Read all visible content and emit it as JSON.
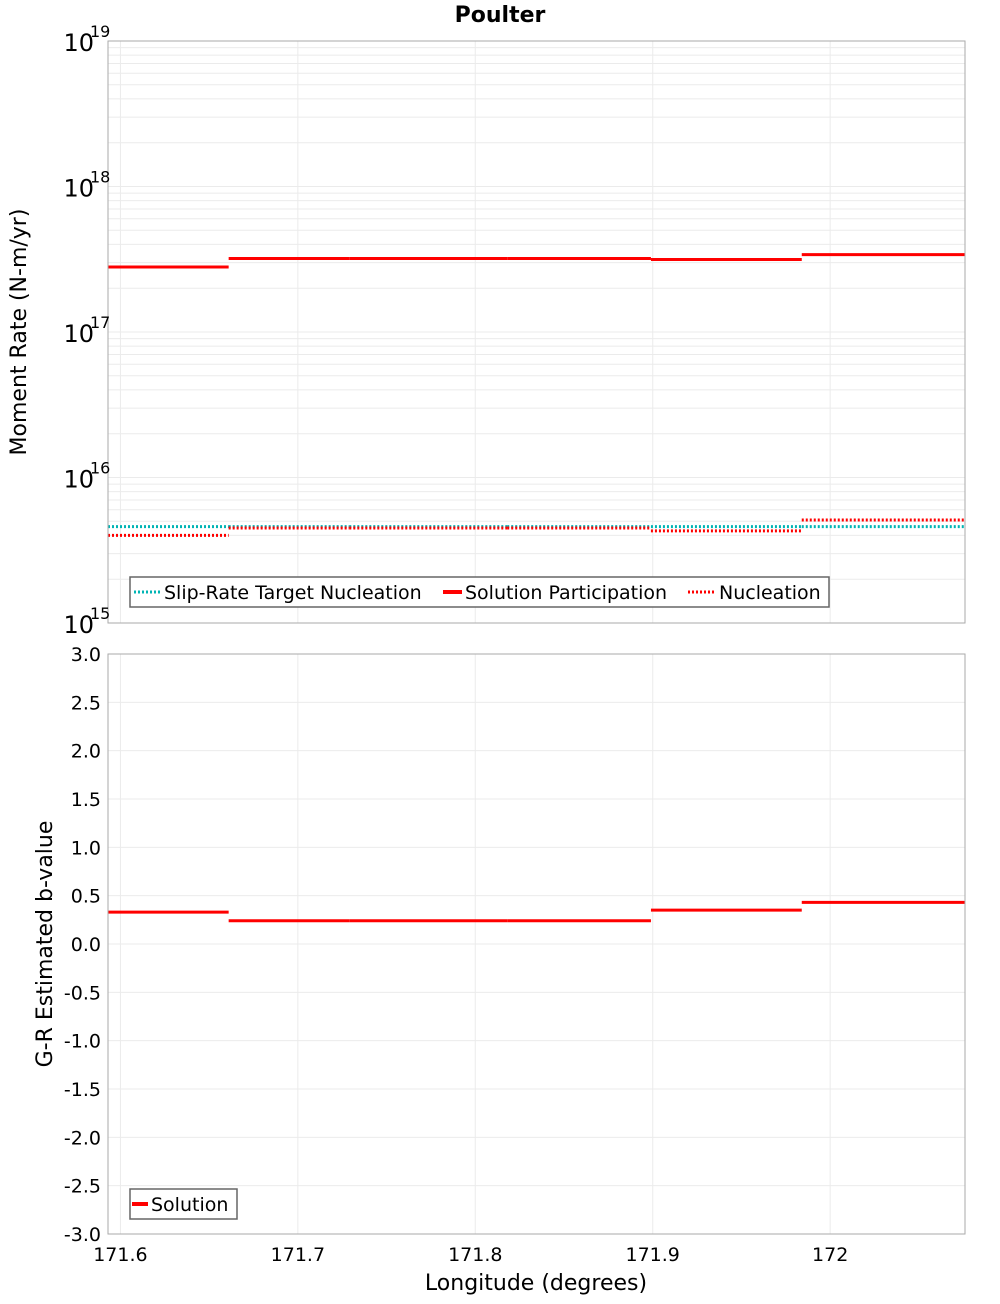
{
  "title": "Poulter",
  "colors": {
    "solution": "#ff0000",
    "target": "#00b4b4",
    "nucleation": "#ff0000",
    "grid": "#ebebeb",
    "frame": "#aaaaaa"
  },
  "chart_data": [
    {
      "type": "line",
      "title": "Poulter",
      "xlabel": "Longitude (degrees)",
      "ylabel": "Moment Rate (N-m/yr)",
      "yscale": "log",
      "ylim": [
        1000000000000000.0,
        1e+19
      ],
      "xlim": [
        171.593,
        172.076
      ],
      "ytick_labels": [
        "10^15",
        "10^16",
        "10^17",
        "10^18",
        "10^19"
      ],
      "legend": [
        "Slip-Rate Target Nucleation",
        "Solution Participation",
        "Nucleation"
      ],
      "legend_position": "lower-left",
      "grid": true,
      "x_segment_edges": [
        171.593,
        171.661,
        171.729,
        171.818,
        171.899,
        171.984,
        172.076
      ],
      "series": [
        {
          "name": "Slip-Rate Target Nucleation",
          "style": "dotted",
          "color": "#00b4b4",
          "values": [
            4600000000000000.0,
            4600000000000000.0,
            4600000000000000.0,
            4600000000000000.0,
            4600000000000000.0,
            4600000000000000.0
          ]
        },
        {
          "name": "Solution Participation",
          "style": "solid",
          "color": "#ff0000",
          "values": [
            2.8e+17,
            3.2e+17,
            3.2e+17,
            3.2e+17,
            3.15e+17,
            3.4e+17
          ]
        },
        {
          "name": "Nucleation",
          "style": "dotted",
          "color": "#ff0000",
          "values": [
            4000000000000000.0,
            4500000000000000.0,
            4500000000000000.0,
            4500000000000000.0,
            4300000000000000.0,
            5100000000000000.0
          ]
        }
      ]
    },
    {
      "type": "line",
      "xlabel": "Longitude (degrees)",
      "ylabel": "G-R Estimated b-value",
      "ylim": [
        -3.0,
        3.0
      ],
      "xlim": [
        171.593,
        172.076
      ],
      "xtick_labels": [
        "171.6",
        "171.7",
        "171.8",
        "171.9",
        "172"
      ],
      "ytick_labels": [
        "3.0",
        "2.5",
        "2.0",
        "1.5",
        "1.0",
        "0.5",
        "0.0",
        "-0.5",
        "-1.0",
        "-1.5",
        "-2.0",
        "-2.5",
        "-3.0"
      ],
      "legend": [
        "Solution"
      ],
      "legend_position": "lower-left",
      "grid": true,
      "x_segment_edges": [
        171.593,
        171.661,
        171.729,
        171.818,
        171.899,
        171.984,
        172.076
      ],
      "series": [
        {
          "name": "Solution",
          "style": "solid",
          "color": "#ff0000",
          "values": [
            0.33,
            0.24,
            0.24,
            0.24,
            0.35,
            0.43
          ]
        }
      ]
    }
  ],
  "labels": {
    "top_ylabel": "Moment Rate (N-m/yr)",
    "bottom_ylabel": "G-R Estimated b-value",
    "xlabel": "Longitude (degrees)",
    "top_legend": [
      "Slip-Rate Target Nucleation",
      "Solution Participation",
      "Nucleation"
    ],
    "bottom_legend": [
      "Solution"
    ],
    "xticks": [
      "171.6",
      "171.7",
      "171.8",
      "171.9",
      "172"
    ],
    "yticks_top_base": [
      "10",
      "10",
      "10",
      "10",
      "10"
    ],
    "yticks_top_exp": [
      "19",
      "18",
      "17",
      "16",
      "15"
    ],
    "yticks_bottom": [
      "3.0",
      "2.5",
      "2.0",
      "1.5",
      "1.0",
      "0.5",
      "0.0",
      "-0.5",
      "-1.0",
      "-1.5",
      "-2.0",
      "-2.5",
      "-3.0"
    ]
  }
}
